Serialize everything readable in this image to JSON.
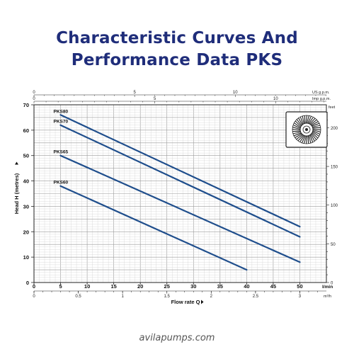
{
  "header": {
    "title_line1": "Characteristic Curves And",
    "title_line2": "Performance Data PKS"
  },
  "footer": {
    "text": "avilapumps.com"
  },
  "chart_data": {
    "type": "line",
    "title": "Characteristic Curves And Performance Data PKS",
    "xlabel": "Flow rate Q",
    "ylabel": "Head H (metres)",
    "x_unit": "l/min",
    "xlim": [
      0,
      55
    ],
    "ylim": [
      0,
      70
    ],
    "x_ticks": [
      0,
      5,
      10,
      15,
      20,
      25,
      30,
      35,
      40,
      45,
      50
    ],
    "y_ticks": [
      0,
      10,
      20,
      30,
      40,
      50,
      60,
      70
    ],
    "grid": true,
    "secondary_axes": {
      "m3h": {
        "unit": "m³/h",
        "ticks": [
          "0",
          "0.5",
          "1",
          "1.5",
          "2",
          "2.5",
          "3"
        ],
        "values": [
          0,
          0.5,
          1,
          1.5,
          2,
          2.5,
          3
        ]
      },
      "us_gpm": {
        "unit": "US g.p.m.",
        "ticks": [
          "0",
          "5",
          "10"
        ],
        "values": [
          0,
          5,
          10
        ]
      },
      "imp_gpm": {
        "unit": "Imp g.p.m.",
        "ticks": [
          "0",
          "5",
          "10"
        ],
        "values": [
          0,
          5,
          10
        ]
      },
      "feet": {
        "unit": "feet",
        "ticks": [
          "0",
          "50",
          "100",
          "150",
          "200"
        ],
        "values": [
          0,
          50,
          100,
          150,
          200
        ]
      }
    },
    "series": [
      {
        "name": "PKS80",
        "color": "#1f4e8c",
        "x": [
          5,
          50
        ],
        "y": [
          66,
          22
        ]
      },
      {
        "name": "PKS70",
        "color": "#1f4e8c",
        "x": [
          5,
          50
        ],
        "y": [
          62,
          18
        ]
      },
      {
        "name": "PKS65",
        "color": "#1f4e8c",
        "x": [
          5,
          50
        ],
        "y": [
          50,
          8
        ]
      },
      {
        "name": "PKS60",
        "color": "#1f4e8c",
        "x": [
          5,
          40
        ],
        "y": [
          38,
          5
        ]
      }
    ],
    "inset_icon": "impeller-icon"
  }
}
